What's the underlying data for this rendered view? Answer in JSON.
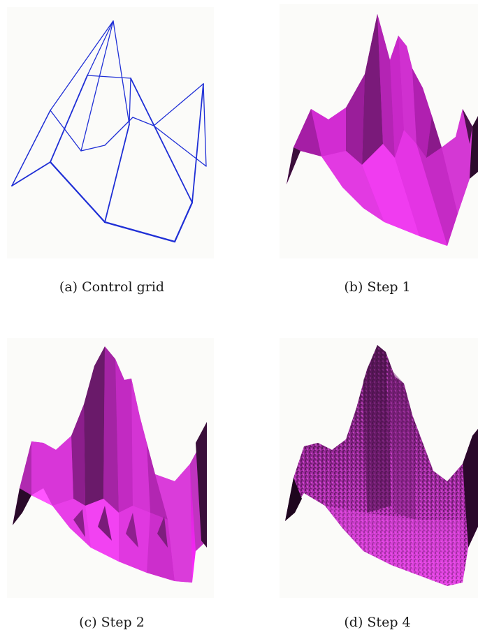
{
  "figure": {
    "panels": [
      {
        "id": "a",
        "caption": "(a) Control grid"
      },
      {
        "id": "b",
        "caption": "(b) Step 1"
      },
      {
        "id": "c",
        "caption": "(c) Step 2"
      },
      {
        "id": "d",
        "caption": "(d) Step 4"
      }
    ]
  },
  "colors": {
    "wireframe": "#1f2fd6",
    "surface": "#e020e0",
    "surface_dark": "#5a1a5a"
  }
}
